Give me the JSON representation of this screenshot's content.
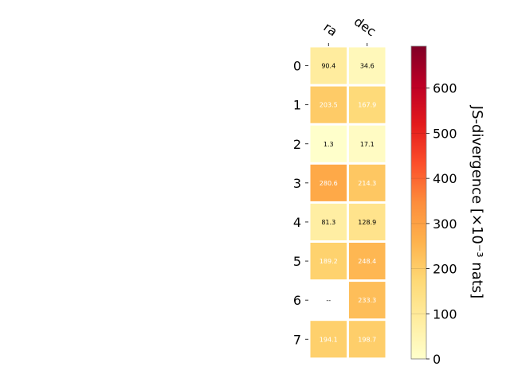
{
  "chart_data": {
    "type": "heatmap",
    "x_categories": [
      "ra",
      "dec"
    ],
    "y_categories": [
      "0",
      "1",
      "2",
      "3",
      "4",
      "5",
      "6",
      "7"
    ],
    "values": [
      [
        90.4,
        34.6
      ],
      [
        203.5,
        167.9
      ],
      [
        1.3,
        17.1
      ],
      [
        280.6,
        214.3
      ],
      [
        81.3,
        128.9
      ],
      [
        189.2,
        248.4
      ],
      [
        null,
        233.3
      ],
      [
        194.1,
        198.7
      ]
    ],
    "cell_labels": [
      [
        "90.4",
        "34.6"
      ],
      [
        "203.5",
        "167.9"
      ],
      [
        "1.3",
        "17.1"
      ],
      [
        "280.6",
        "214.3"
      ],
      [
        "81.3",
        "128.9"
      ],
      [
        "189.2",
        "248.4"
      ],
      [
        "--",
        "233.3"
      ],
      [
        "194.1",
        "198.7"
      ]
    ],
    "colorbar": {
      "label": "JS-divergence [×10⁻³ nats]",
      "range": [
        0,
        693
      ],
      "ticks": [
        0,
        100,
        200,
        300,
        400,
        500,
        600
      ],
      "colormap": "YlOrRd"
    }
  }
}
